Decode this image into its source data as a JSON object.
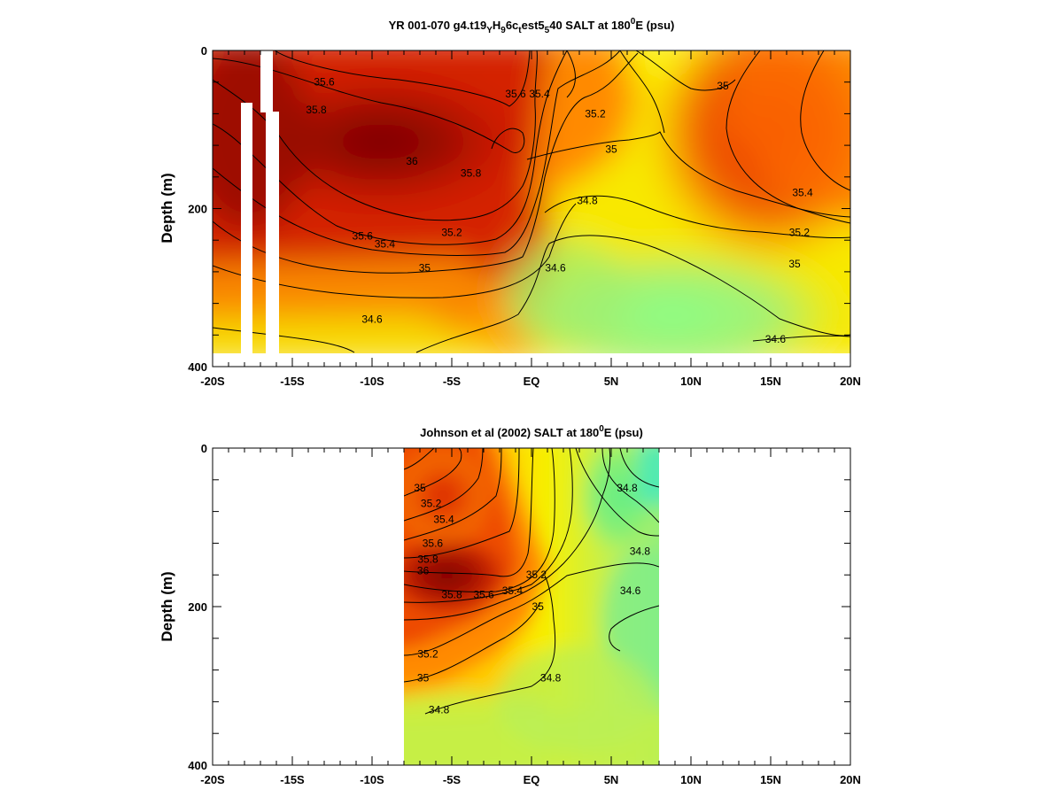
{
  "chart_data": [
    {
      "type": "heatmap",
      "title_prefix": "YR 001-070 g4.t19",
      "title_sub1": "Y",
      "title_mid1": "H",
      "title_sub2": "9",
      "title_mid2": "6c",
      "title_sub3": "t",
      "title_mid3": "est5",
      "title_sub4": "5",
      "title_suffix": "40 SALT at 180",
      "title_sup": "0",
      "title_end": "E (psu)",
      "ylabel": "Depth (m)",
      "xlim": [
        -20,
        20
      ],
      "ylim": [
        0,
        400
      ],
      "x_ticks": [
        -20,
        -15,
        -10,
        -5,
        0,
        5,
        10,
        15,
        20
      ],
      "x_tick_labels": [
        "-20S",
        "-15S",
        "-10S",
        "-5S",
        "EQ",
        "5N",
        "10N",
        "15N",
        "20N"
      ],
      "y_tick_labels": [
        {
          "value": 0,
          "label": "0"
        },
        {
          "value": 200,
          "label": "200"
        },
        {
          "value": 400,
          "label": "400"
        }
      ],
      "data_extent": {
        "x": [
          -20,
          20
        ],
        "depth": [
          0,
          380
        ]
      },
      "missing_columns": [
        {
          "x": [
            -18.3,
            -17.6
          ],
          "depth": [
            0,
            70
          ]
        },
        {
          "x": [
            -18.3,
            -17.6
          ],
          "depth": [
            70,
            380
          ]
        },
        {
          "x": [
            -17.1,
            -16.6
          ],
          "depth": [
            0,
            70
          ]
        },
        {
          "x": [
            -16.6,
            -16.0
          ],
          "depth": [
            0,
            400
          ]
        }
      ],
      "colors": {
        "low": "#88ff88",
        "mid": "#ffff00",
        "high": "#d42000",
        "max": "#7a0000"
      },
      "contour_labels": [
        {
          "text": "35.6",
          "x": -13.0,
          "depth": 40
        },
        {
          "text": "35.8",
          "x": -13.5,
          "depth": 75
        },
        {
          "text": "36",
          "x": -7.5,
          "depth": 140
        },
        {
          "text": "35.6",
          "x": -1.0,
          "depth": 55
        },
        {
          "text": "35.4",
          "x": 0.5,
          "depth": 55
        },
        {
          "text": "35.8",
          "x": -3.8,
          "depth": 155
        },
        {
          "text": "35.2",
          "x": 4.0,
          "depth": 80
        },
        {
          "text": "35",
          "x": 12.0,
          "depth": 45
        },
        {
          "text": "35",
          "x": 5.0,
          "depth": 125
        },
        {
          "text": "34.8",
          "x": 3.5,
          "depth": 190
        },
        {
          "text": "35.6",
          "x": -10.6,
          "depth": 235
        },
        {
          "text": "35.4",
          "x": -9.2,
          "depth": 245
        },
        {
          "text": "35.2",
          "x": -5.0,
          "depth": 230
        },
        {
          "text": "35",
          "x": -6.7,
          "depth": 275
        },
        {
          "text": "34.6",
          "x": 1.5,
          "depth": 275
        },
        {
          "text": "34.6",
          "x": -10.0,
          "depth": 340
        },
        {
          "text": "35.4",
          "x": 17.0,
          "depth": 180
        },
        {
          "text": "35.2",
          "x": 16.8,
          "depth": 230
        },
        {
          "text": "35",
          "x": 16.5,
          "depth": 270
        },
        {
          "text": "34.6",
          "x": 15.3,
          "depth": 365
        }
      ]
    },
    {
      "type": "heatmap",
      "title_prefix": "Johnson et al (2002) SALT at 180",
      "title_sup": "0",
      "title_end": "E (psu)",
      "ylabel": "Depth (m)",
      "xlim": [
        -20,
        20
      ],
      "ylim": [
        0,
        400
      ],
      "x_ticks": [
        -20,
        -15,
        -10,
        -5,
        0,
        5,
        10,
        15,
        20
      ],
      "x_tick_labels": [
        "-20S",
        "-15S",
        "-10S",
        "-5S",
        "EQ",
        "5N",
        "10N",
        "15N",
        "20N"
      ],
      "y_tick_labels": [
        {
          "value": 0,
          "label": "0"
        },
        {
          "value": 200,
          "label": "200"
        },
        {
          "value": 400,
          "label": "400"
        }
      ],
      "data_extent": {
        "x": [
          -8,
          8
        ],
        "depth": [
          0,
          400
        ]
      },
      "colors": {
        "low": "#66ee99",
        "mid": "#ffff00",
        "high": "#d42000",
        "max": "#7a0000"
      },
      "contour_labels": [
        {
          "text": "35",
          "x": -7.0,
          "depth": 50
        },
        {
          "text": "35.2",
          "x": -6.3,
          "depth": 70
        },
        {
          "text": "35.4",
          "x": -5.5,
          "depth": 90
        },
        {
          "text": "35.6",
          "x": -6.2,
          "depth": 120
        },
        {
          "text": "35.8",
          "x": -6.5,
          "depth": 140
        },
        {
          "text": "36",
          "x": -6.8,
          "depth": 155
        },
        {
          "text": "35.8",
          "x": -5.0,
          "depth": 185
        },
        {
          "text": "35.6",
          "x": -3.0,
          "depth": 185
        },
        {
          "text": "35.4",
          "x": -1.2,
          "depth": 180
        },
        {
          "text": "35.2",
          "x": 0.3,
          "depth": 160
        },
        {
          "text": "35",
          "x": 0.4,
          "depth": 200
        },
        {
          "text": "34.8",
          "x": 6.0,
          "depth": 50
        },
        {
          "text": "34.8",
          "x": 6.8,
          "depth": 130
        },
        {
          "text": "34.6",
          "x": 6.2,
          "depth": 180
        },
        {
          "text": "35.2",
          "x": -6.5,
          "depth": 260
        },
        {
          "text": "35",
          "x": -6.8,
          "depth": 290
        },
        {
          "text": "34.8",
          "x": 1.2,
          "depth": 290
        },
        {
          "text": "34.8",
          "x": -5.8,
          "depth": 330
        }
      ]
    }
  ]
}
